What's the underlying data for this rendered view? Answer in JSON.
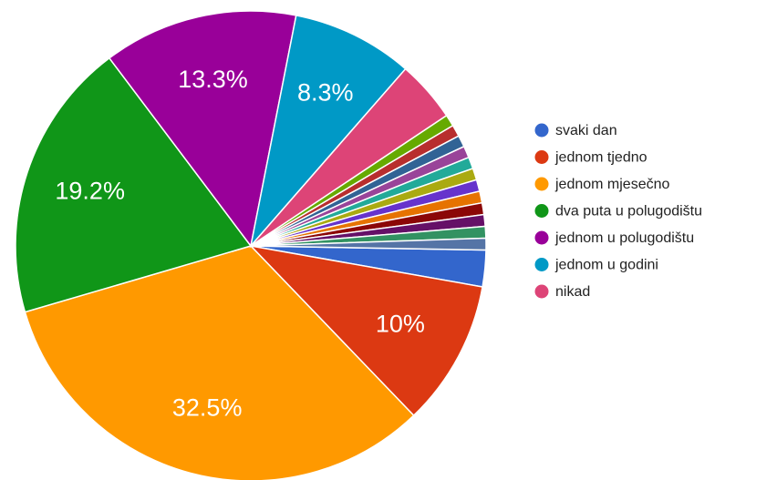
{
  "chart_data": {
    "type": "pie",
    "categories": [
      "svaki dan",
      "jednom tjedno",
      "jednom mjesečno",
      "dva puta u polugodištu",
      "jednom u polugodištu",
      "jednom u godini",
      "nikad",
      null,
      null,
      null,
      null,
      null,
      null,
      null,
      null,
      null,
      null,
      null,
      null
    ],
    "values": [
      2.5,
      10,
      32.5,
      19.2,
      13.3,
      8.3,
      4.2,
      0.8,
      0.8,
      0.8,
      0.8,
      0.8,
      0.8,
      0.8,
      0.8,
      0.8,
      0.8,
      0.8,
      0.8
    ],
    "value_labels": [
      null,
      "10%",
      "32.5%",
      "19.2%",
      "13.3%",
      "8.3%",
      null,
      null,
      null,
      null,
      null,
      null,
      null,
      null,
      null,
      null,
      null,
      null,
      null
    ],
    "colors": [
      "#3366cc",
      "#dc3912",
      "#ff9900",
      "#109618",
      "#990099",
      "#0099c6",
      "#dd4477",
      "#66aa00",
      "#b82e2e",
      "#316395",
      "#994499",
      "#22aa99",
      "#aaaa11",
      "#6633cc",
      "#e67300",
      "#8b0707",
      "#651067",
      "#329262",
      "#5574a6"
    ],
    "legend": "right"
  }
}
